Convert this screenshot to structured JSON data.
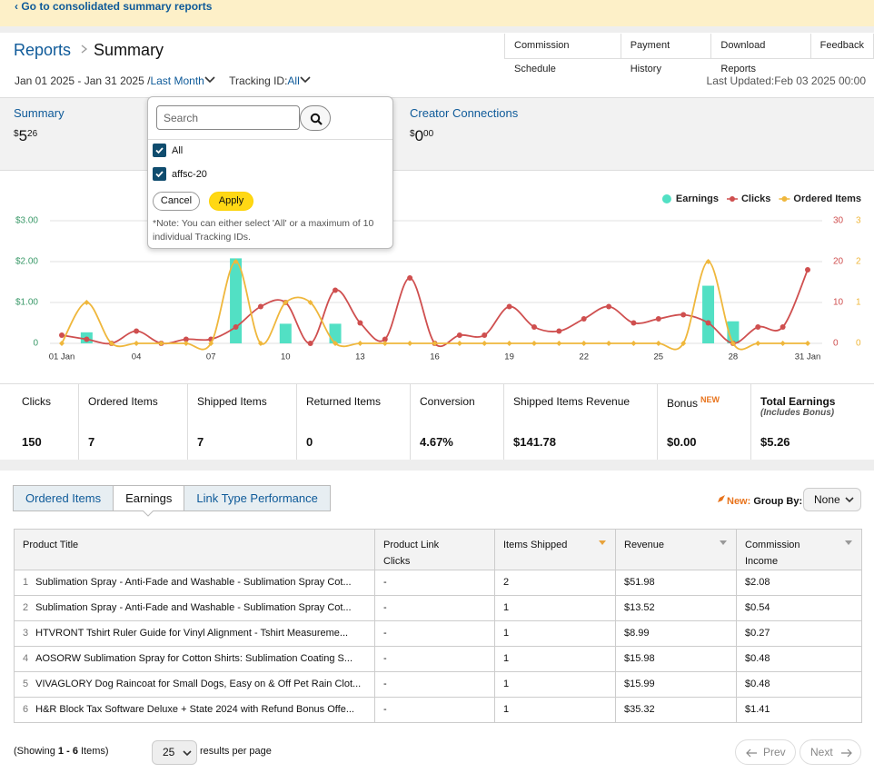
{
  "banner": {
    "link": "‹ Go to consolidated summary reports"
  },
  "header": {
    "breadcrumb": [
      "Reports",
      "Summary"
    ],
    "links": [
      "Commission Schedule",
      "Payment History",
      "Download Reports",
      "Feedback"
    ]
  },
  "filters": {
    "date_range": "Jan 01 2025 - Jan 31 2025 /",
    "period": "Last Month",
    "tracking_label": "Tracking ID:",
    "tracking_value": "All",
    "last_updated": "Last Updated:Feb 03 2025 00:00"
  },
  "cards": [
    {
      "title": "Summary",
      "currency": "$",
      "whole": "5",
      "cents": "26"
    },
    {
      "title": "Creator Connections",
      "currency": "$",
      "whole": "0",
      "cents": "00"
    }
  ],
  "dropdown": {
    "search_placeholder": "Search",
    "options": [
      {
        "label": "All",
        "checked": true
      },
      {
        "label": "affsc-20",
        "checked": true
      }
    ],
    "cancel": "Cancel",
    "apply": "Apply",
    "note_lines": [
      "*Note: You can either select 'All' or a maximum of 10",
      "individual Tracking IDs."
    ]
  },
  "chart_data": {
    "type": "line",
    "legend": "top-right",
    "grid": true,
    "categories": [
      "01 Jan",
      null,
      null,
      "04",
      null,
      null,
      "07",
      null,
      null,
      "10",
      null,
      null,
      "13",
      null,
      null,
      "16",
      null,
      null,
      "19",
      null,
      null,
      "22",
      null,
      null,
      "25",
      null,
      null,
      "28",
      null,
      null,
      "31 Jan"
    ],
    "ylim": [
      0,
      3
    ],
    "yticks": [
      0,
      {
        "value": 1,
        "label": "$1.00"
      },
      {
        "value": 2,
        "label": "$2.00"
      },
      {
        "value": 3,
        "label": "$3.00"
      }
    ],
    "y2lim": [
      0,
      30
    ],
    "y2ticks": [
      0,
      10,
      20,
      30
    ],
    "y3lim": [
      0,
      3
    ],
    "y3ticks": [
      0,
      1,
      2,
      3
    ],
    "series": [
      {
        "name": "Earnings",
        "type": "bar",
        "color": "#52e0c4",
        "axis": "y",
        "values": [
          0,
          0.27,
          0,
          0,
          0,
          0,
          0,
          2.08,
          0,
          0.48,
          0,
          0.48,
          0,
          0,
          0,
          0,
          0,
          0,
          0,
          0,
          0,
          0,
          0,
          0,
          0,
          0,
          1.41,
          0.54,
          0,
          0,
          0
        ]
      },
      {
        "name": "Clicks",
        "type": "line",
        "color": "#cf4f4f",
        "axis": "y2",
        "values": [
          2,
          1,
          0,
          3,
          0,
          1,
          1,
          4,
          9,
          10,
          0,
          13,
          5,
          1,
          16,
          0,
          2,
          2,
          9,
          4,
          3,
          6,
          9,
          5,
          6,
          7,
          5,
          0,
          4,
          4,
          18
        ]
      },
      {
        "name": "Ordered Items",
        "type": "line",
        "color": "#efb73c",
        "axis": "y3",
        "values": [
          0,
          1,
          0,
          0,
          0,
          0,
          0,
          2,
          0,
          1,
          1,
          0,
          0,
          0,
          0,
          0,
          0,
          0,
          0,
          0,
          0,
          0,
          0,
          0,
          0,
          0,
          2,
          0,
          0,
          0,
          0
        ]
      }
    ]
  },
  "stats": [
    {
      "label": "Clicks",
      "value": "150"
    },
    {
      "label": "Ordered Items",
      "value": "7"
    },
    {
      "label": "Shipped Items",
      "value": "7"
    },
    {
      "label": "Returned Items",
      "value": "0"
    },
    {
      "label": "Conversion",
      "value": "4.67%"
    },
    {
      "label": "Shipped Items Revenue",
      "value": "$141.78"
    },
    {
      "label": "Bonus",
      "badge": "NEW",
      "value": "$0.00"
    },
    {
      "label": "Total Earnings",
      "sublabel": "(Includes Bonus)",
      "value": "$5.26"
    }
  ],
  "tabs": {
    "items": [
      "Ordered Items",
      "Earnings",
      "Link Type Performance"
    ],
    "active": 1
  },
  "group_by": {
    "new": "New:",
    "label": "Group By:",
    "value": "None"
  },
  "table": {
    "sorted_column": 2,
    "columns": [
      {
        "label": "Product Title",
        "sortable": false
      },
      {
        "label": "Product Link Clicks",
        "sortable": false
      },
      {
        "label": "Items Shipped",
        "sortable": true
      },
      {
        "label": "Revenue",
        "sortable": true
      },
      {
        "label": "Commission Income",
        "sortable": true
      }
    ],
    "rows": [
      [
        "1",
        "Sublimation Spray - Anti-Fade and Washable - Sublimation Spray Cot...",
        "-",
        "2",
        "$51.98",
        "$2.08"
      ],
      [
        "2",
        "Sublimation Spray - Anti-Fade and Washable - Sublimation Spray Cot...",
        "-",
        "1",
        "$13.52",
        "$0.54"
      ],
      [
        "3",
        "HTVRONT Tshirt Ruler Guide for Vinyl Alignment - Tshirt Measureme...",
        "-",
        "1",
        "$8.99",
        "$0.27"
      ],
      [
        "4",
        "AOSORW Sublimation Spray for Cotton Shirts: Sublimation Coating S...",
        "-",
        "1",
        "$15.98",
        "$0.48"
      ],
      [
        "5",
        "VIVAGLORY Dog Raincoat for Small Dogs, Easy on & Off Pet Rain Clot...",
        "-",
        "1",
        "$15.99",
        "$0.48"
      ],
      [
        "6",
        "H&R Block Tax Software Deluxe + State 2024 with Refund Bonus Offe...",
        "-",
        "1",
        "$35.32",
        "$1.41"
      ]
    ]
  },
  "pagination": {
    "showing_prefix": "(Showing ",
    "range": "1 - 6",
    "showing_suffix": " Items)",
    "per_page": "25",
    "per_page_label": "results per page",
    "prev": "Prev",
    "next": "Next"
  }
}
